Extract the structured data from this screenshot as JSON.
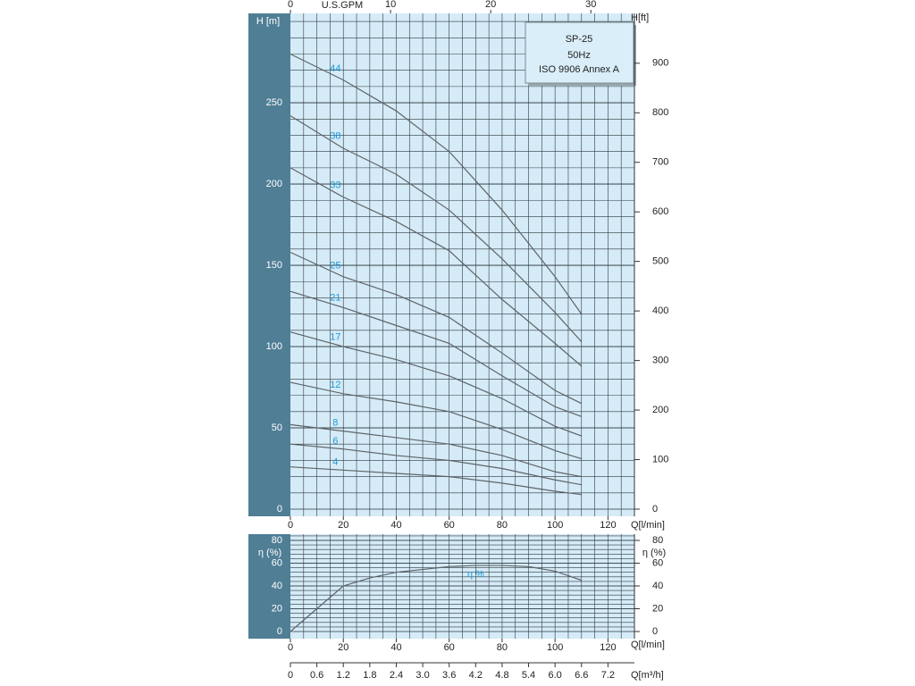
{
  "chart_data": [
    {
      "type": "line",
      "title": "SP-25",
      "subtitle": "50Hz",
      "note": "ISO 9906 Annex A",
      "xlabel": "Q[l/min]",
      "ylabel": "H [m]",
      "y2label": "H[ft]",
      "x2label": "U.S.GPM",
      "x": [
        0,
        20,
        40,
        60,
        80,
        100,
        110
      ],
      "series": [
        {
          "name": "44",
          "values": [
            280,
            264,
            245,
            220,
            184,
            143,
            120
          ]
        },
        {
          "name": "38",
          "values": [
            242,
            222,
            206,
            184,
            154,
            121,
            103
          ]
        },
        {
          "name": "33",
          "values": [
            210,
            192,
            177,
            159,
            129,
            102,
            88
          ]
        },
        {
          "name": "25",
          "values": [
            158,
            143,
            132,
            118,
            96,
            73,
            65
          ]
        },
        {
          "name": "21",
          "values": [
            134,
            124,
            113,
            102,
            82,
            63,
            57
          ]
        },
        {
          "name": "17",
          "values": [
            109,
            100,
            92,
            82,
            68,
            51,
            45
          ]
        },
        {
          "name": "12",
          "values": [
            78,
            71,
            66,
            60,
            49,
            36,
            31
          ]
        },
        {
          "name": "8",
          "values": [
            52,
            48,
            44,
            40,
            33,
            23,
            20
          ]
        },
        {
          "name": "6",
          "values": [
            40,
            37,
            33,
            30,
            25,
            18,
            15
          ]
        },
        {
          "name": "4",
          "values": [
            26,
            24,
            22,
            20,
            16,
            11,
            9
          ]
        }
      ],
      "line_color": "#5f6468",
      "label_color": "#1e9ad8",
      "xlim": [
        0,
        130
      ],
      "xticks": [
        0,
        20,
        40,
        60,
        80,
        100,
        120
      ],
      "x2lim": [
        0,
        34.35
      ],
      "x2ticks": [
        0,
        10,
        20,
        30
      ],
      "ylim": [
        0,
        305
      ],
      "yticks": [
        0,
        50,
        100,
        150,
        200,
        250
      ],
      "y2lim": [
        0,
        1000.6
      ],
      "y2ticks": [
        0,
        100,
        200,
        300,
        400,
        500,
        600,
        700,
        800,
        900
      ],
      "grid": true
    },
    {
      "type": "line",
      "xlabel": "Q[l/min]",
      "ylabel": "η (%)",
      "y2label": "η (%)",
      "x2label": "Q[m³/h]",
      "annotation": "η %",
      "x": [
        0,
        10,
        20,
        30,
        40,
        60,
        70,
        80,
        90,
        100,
        110
      ],
      "series": [
        {
          "name": "η",
          "values": [
            0,
            20,
            40,
            47,
            52,
            57,
            58,
            58,
            57,
            53,
            45
          ]
        }
      ],
      "line_color": "#5f6468",
      "label_color": "#1e9ad8",
      "xlim": [
        0,
        130
      ],
      "xticks": [
        0,
        20,
        40,
        60,
        80,
        100,
        120
      ],
      "x2lim": [
        0,
        7.8
      ],
      "x2ticks": [
        0,
        0.6,
        1.2,
        1.8,
        2.4,
        {
          "value": 3,
          "label": "3.0"
        },
        3.6,
        4.2,
        4.8,
        5.4,
        {
          "value": 6,
          "label": "6.0"
        },
        6.6,
        7.2
      ],
      "ylim": [
        0,
        80
      ],
      "yticks": [
        0,
        20,
        40,
        60,
        80
      ],
      "y2lim": [
        0,
        80
      ],
      "y2ticks": [
        0,
        20,
        40,
        60,
        80
      ],
      "grid": true
    }
  ]
}
